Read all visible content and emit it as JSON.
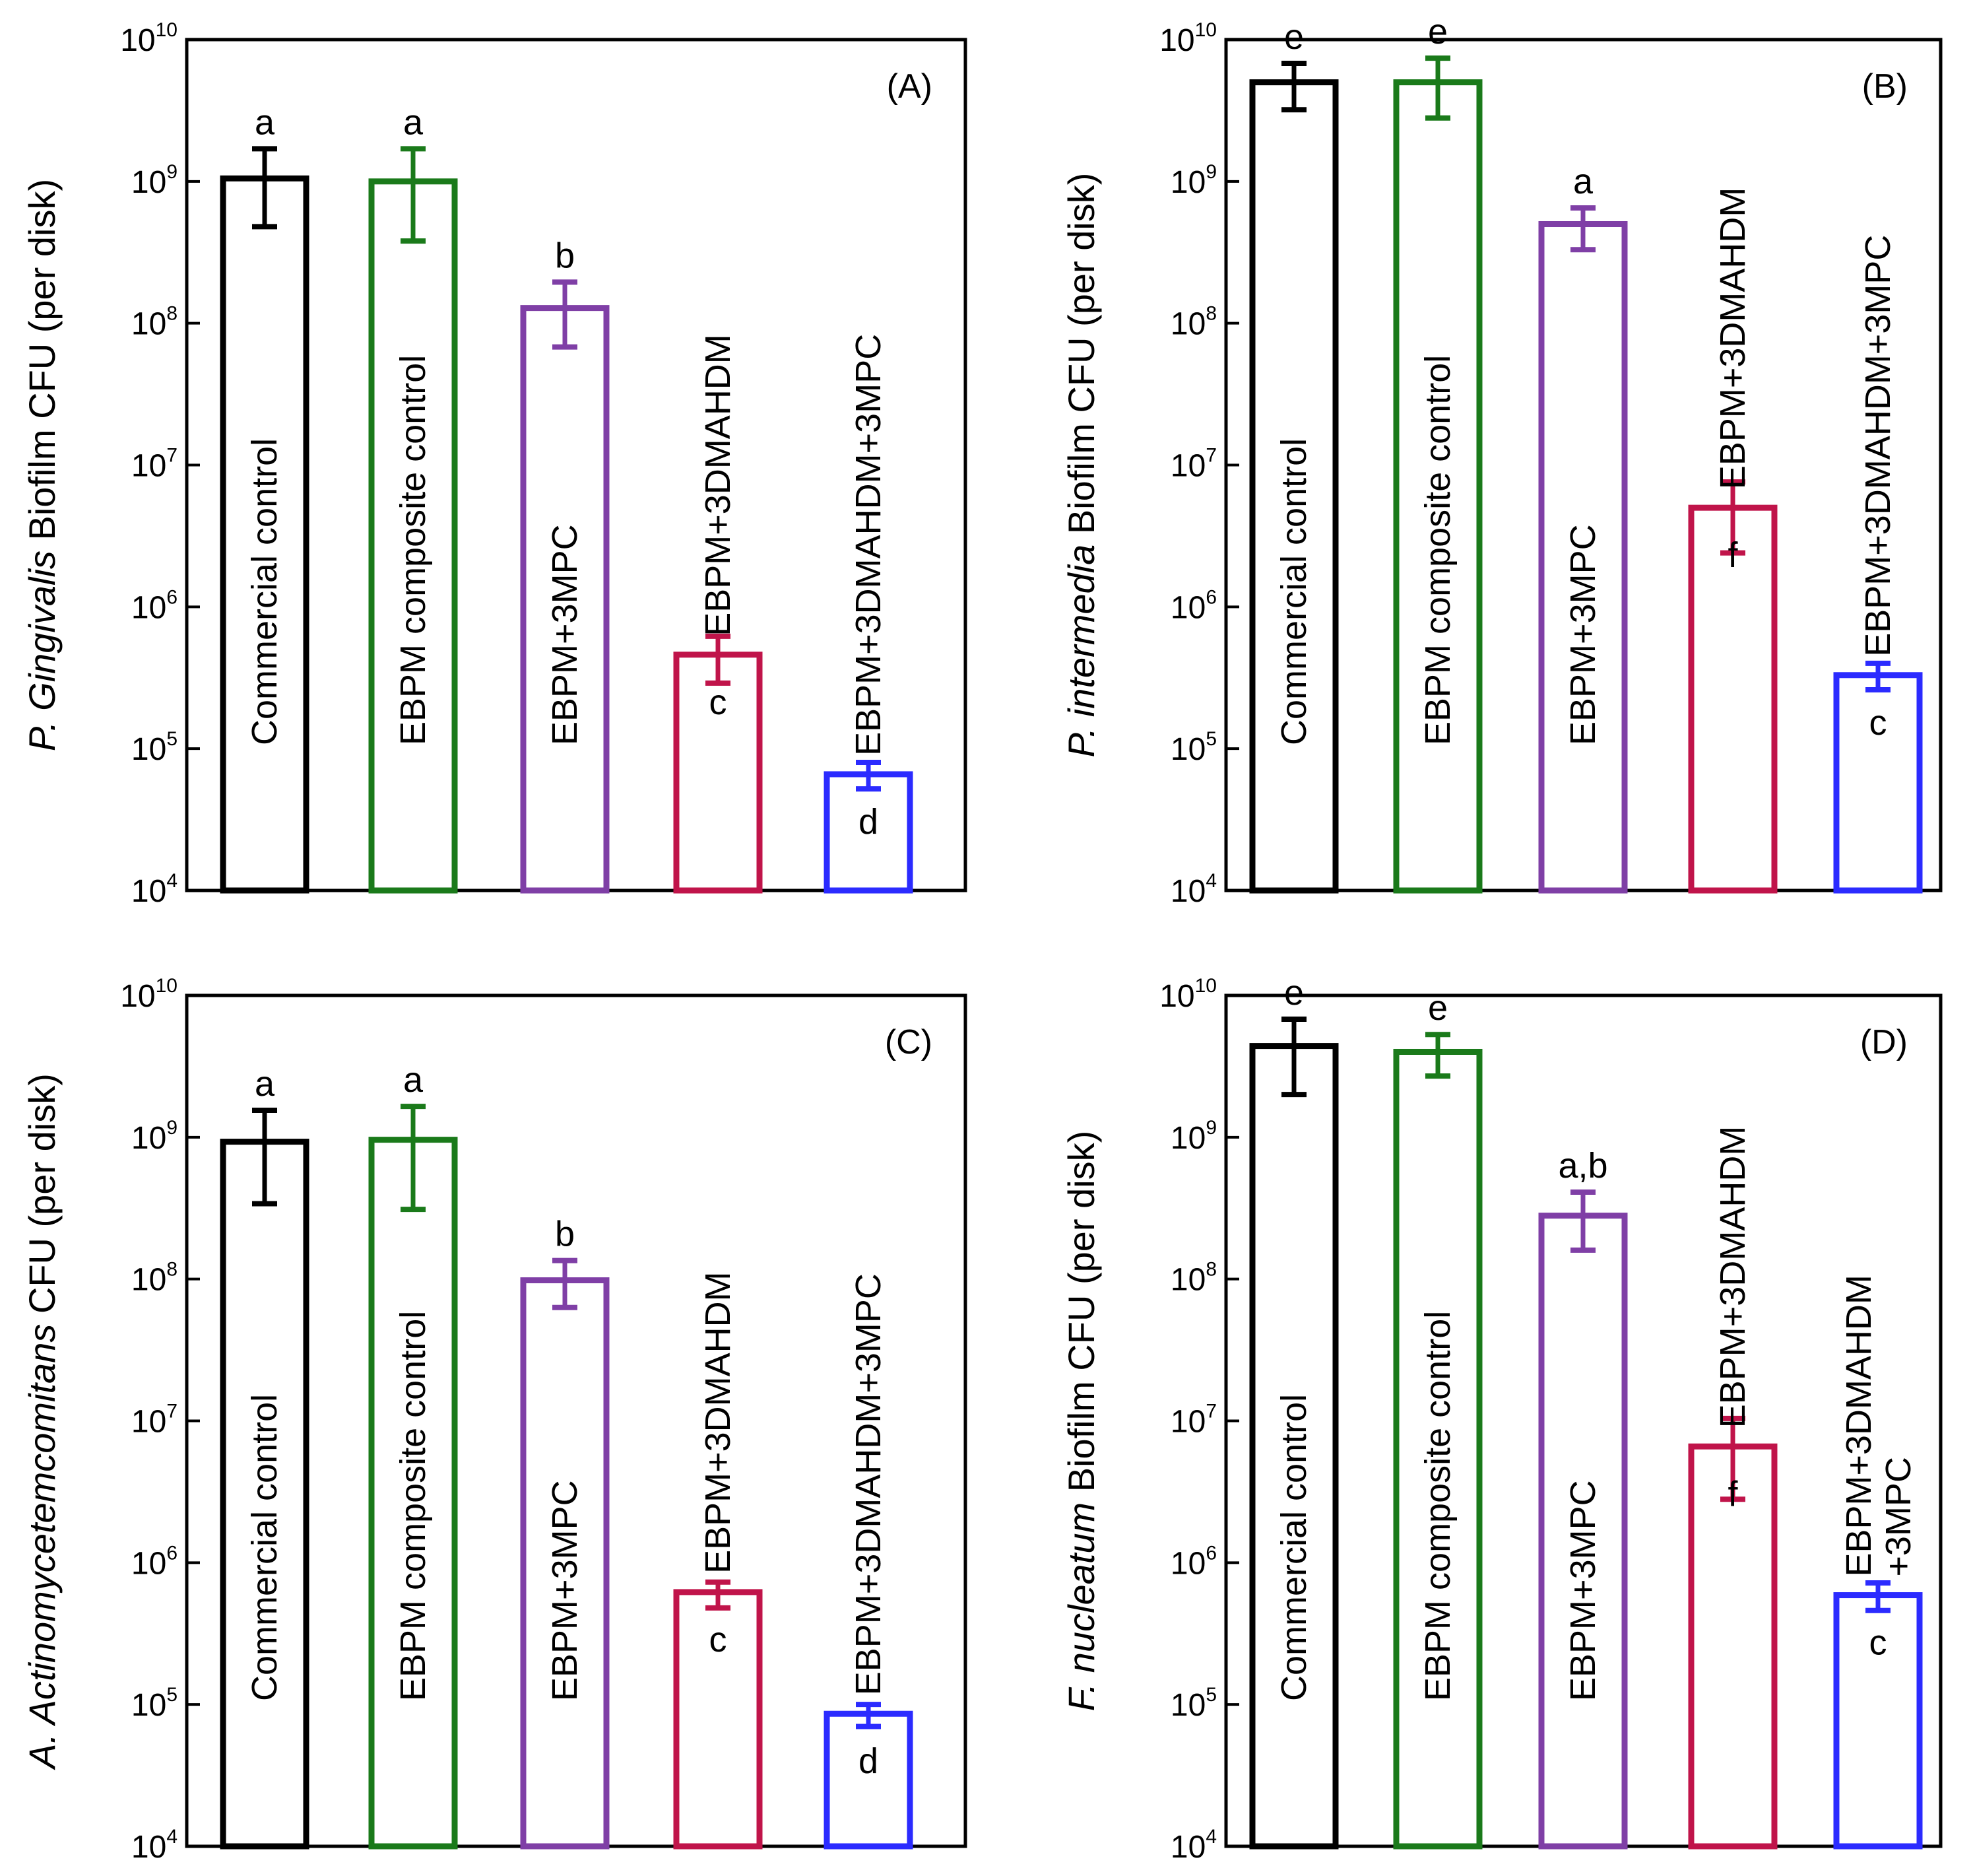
{
  "chart_data": [
    {
      "type": "bar",
      "panel": "(A)",
      "yscale": "log",
      "ylim_exponents": [
        4,
        10
      ],
      "ylabel_italic": "P. Gingivalis",
      "ylabel_rest": " Biofilm CFU (per disk)",
      "bars": [
        {
          "label": "Commercial control",
          "value": 1050000000.0,
          "err_low": 480000000.0,
          "err_high": 1700000000.0,
          "letter": "a",
          "color": "#000000"
        },
        {
          "label": "EBPM composite control",
          "value": 1000000000.0,
          "err_low": 380000000.0,
          "err_high": 1700000000.0,
          "letter": "a",
          "color": "#1a7a1a"
        },
        {
          "label": "EBPM+3MPC",
          "value": 128000000.0,
          "err_low": 68000000.0,
          "err_high": 195000000.0,
          "letter": "b",
          "color": "#7f3fa6"
        },
        {
          "label": "EBPM+3DMAHDM",
          "value": 460000.0,
          "err_low": 290000.0,
          "err_high": 620000.0,
          "letter": "c",
          "color": "#c0144a"
        },
        {
          "label": "EBPM+3DMAHDM+3MPC",
          "value": 66000.0,
          "err_low": 52000.0,
          "err_high": 80000.0,
          "letter": "d",
          "color": "#2b2bff"
        }
      ]
    },
    {
      "type": "bar",
      "panel": "(B)",
      "yscale": "log",
      "ylim_exponents": [
        4,
        10
      ],
      "ylabel_italic": "P. intermedia",
      "ylabel_rest": " Biofilm CFU (per disk)",
      "bars": [
        {
          "label": "Commercial control",
          "value": 5000000000.0,
          "err_low": 3200000000.0,
          "err_high": 6800000000.0,
          "letter": "e",
          "color": "#000000"
        },
        {
          "label": "EBPM composite control",
          "value": 5000000000.0,
          "err_low": 2800000000.0,
          "err_high": 7400000000.0,
          "letter": "e",
          "color": "#1a7a1a"
        },
        {
          "label": "EBPM+3MPC",
          "value": 500000000.0,
          "err_low": 330000000.0,
          "err_high": 650000000.0,
          "letter": "a",
          "color": "#7f3fa6"
        },
        {
          "label": "EBPM+3DMAHDM",
          "value": 5000000.0,
          "err_low": 2400000.0,
          "err_high": 7600000.0,
          "letter": "f",
          "color": "#c0144a"
        },
        {
          "label": "EBPM+3DMAHDM+3MPC",
          "value": 330000.0,
          "err_low": 260000.0,
          "err_high": 400000.0,
          "letter": "c",
          "color": "#2b2bff"
        }
      ]
    },
    {
      "type": "bar",
      "panel": "(C)",
      "yscale": "log",
      "ylim_exponents": [
        4,
        10
      ],
      "ylabel_italic": "A. Actinomycetemcomitans",
      "ylabel_rest": " CFU (per disk)",
      "bars": [
        {
          "label": "Commercial control",
          "value": 930000000.0,
          "err_low": 340000000.0,
          "err_high": 1550000000.0,
          "letter": "a",
          "color": "#000000"
        },
        {
          "label": "EBPM composite control",
          "value": 960000000.0,
          "err_low": 310000000.0,
          "err_high": 1650000000.0,
          "letter": "a",
          "color": "#1a7a1a"
        },
        {
          "label": "EBPM+3MPC",
          "value": 98000000.0,
          "err_low": 63000000.0,
          "err_high": 135000000.0,
          "letter": "b",
          "color": "#7f3fa6"
        },
        {
          "label": "EBPM+3DMAHDM",
          "value": 620000.0,
          "err_low": 480000.0,
          "err_high": 730000.0,
          "letter": "c",
          "color": "#c0144a"
        },
        {
          "label": "EBPM+3DMAHDM+3MPC",
          "value": 86000.0,
          "err_low": 70000.0,
          "err_high": 100000.0,
          "letter": "d",
          "color": "#2b2bff"
        }
      ]
    },
    {
      "type": "bar",
      "panel": "(D)",
      "yscale": "log",
      "ylim_exponents": [
        4,
        10
      ],
      "ylabel_italic": "F. nucleatum",
      "ylabel_rest": " Biofilm CFU (per disk)",
      "bars": [
        {
          "label": "Commercial control",
          "value": 4400000000.0,
          "err_low": 2000000000.0,
          "err_high": 6800000000.0,
          "letter": "e",
          "color": "#000000"
        },
        {
          "label": "EBPM composite control",
          "value": 4000000000.0,
          "err_low": 2700000000.0,
          "err_high": 5300000000.0,
          "letter": "e",
          "color": "#1a7a1a"
        },
        {
          "label": "EBPM+3MPC",
          "value": 280000000.0,
          "err_low": 160000000.0,
          "err_high": 410000000.0,
          "letter": "a,b",
          "color": "#7f3fa6"
        },
        {
          "label": "EBPM+3DMAHDM",
          "value": 6600000.0,
          "err_low": 2800000.0,
          "err_high": 10400000.0,
          "letter": "f",
          "color": "#c0144a"
        },
        {
          "label": "EBPM+3DMAHDM\n+3MPC",
          "value": 590000.0,
          "err_low": 460000.0,
          "err_high": 720000.0,
          "letter": "c",
          "color": "#2b2bff"
        }
      ]
    }
  ]
}
